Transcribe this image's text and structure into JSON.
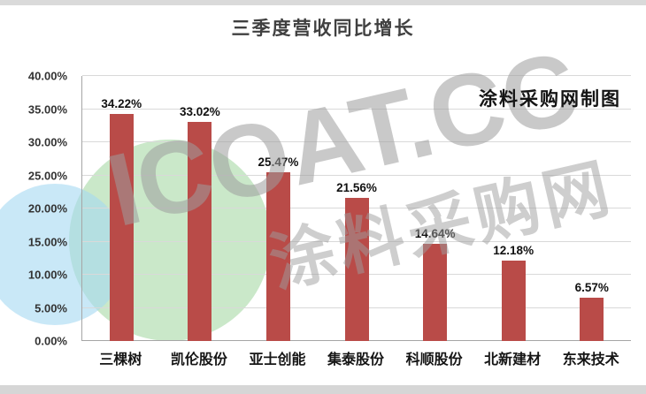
{
  "title": "三季度营收同比增长",
  "credit": "涂料采购网制图",
  "watermark": {
    "latin": "ICOAT.CC",
    "chinese": "涂料采购网"
  },
  "colors": {
    "bar": "#b94b48",
    "gridline": "#d9d9d9",
    "axis": "#a6a6a6",
    "watermark": "#9e9e9e",
    "circle_green": "#9fd69c",
    "circle_blue": "#a5d8f2"
  },
  "chart_data": {
    "type": "bar",
    "title": "三季度营收同比增长",
    "categories": [
      "三棵树",
      "凯伦股份",
      "亚士创能",
      "集泰股份",
      "科顺股份",
      "北新建材",
      "东来技术"
    ],
    "values": [
      34.22,
      33.02,
      25.47,
      21.56,
      14.64,
      12.18,
      6.57
    ],
    "value_labels": [
      "34.22%",
      "33.02%",
      "25.47%",
      "21.56%",
      "14.64%",
      "12.18%",
      "6.57%"
    ],
    "xlabel": "",
    "ylabel": "",
    "ylim": [
      0,
      40
    ],
    "ytick_step": 5,
    "ytick_labels": [
      "0.00%",
      "5.00%",
      "10.00%",
      "15.00%",
      "20.00%",
      "25.00%",
      "30.00%",
      "35.00%",
      "40.00%"
    ],
    "grid": true,
    "legend": false
  }
}
